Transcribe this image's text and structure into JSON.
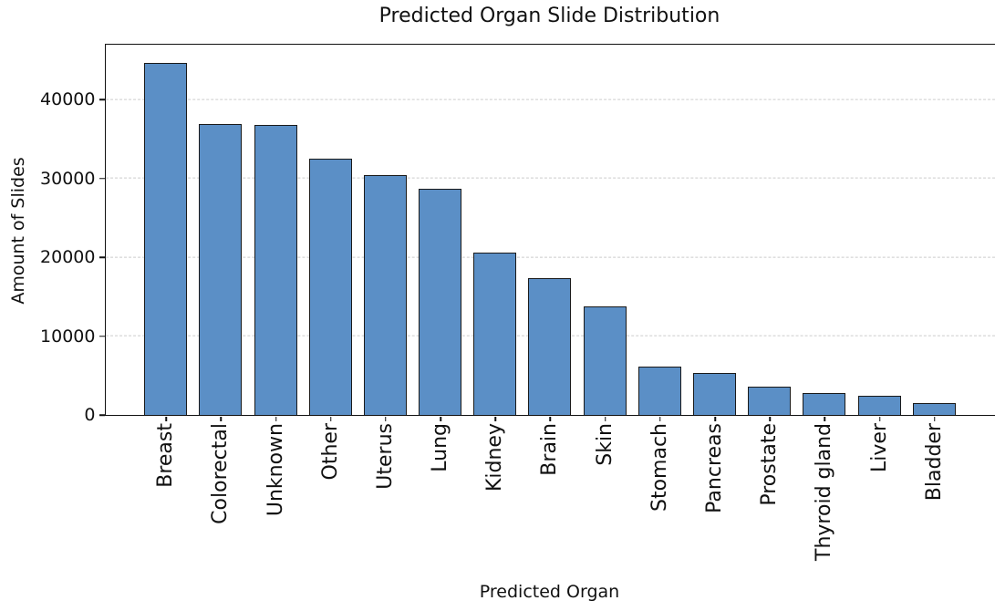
{
  "chart_data": {
    "type": "bar",
    "title": "Predicted Organ Slide Distribution",
    "xlabel": "Predicted Organ",
    "ylabel": "Amount of Slides",
    "categories": [
      "Breast",
      "Colorectal",
      "Unknown",
      "Other",
      "Uterus",
      "Lung",
      "Kidney",
      "Brain",
      "Skin",
      "Stomach",
      "Pancreas",
      "Prostate",
      "Thyroid gland",
      "Liver",
      "Bladder"
    ],
    "values": [
      44600,
      36900,
      36700,
      32500,
      30400,
      28700,
      20500,
      17300,
      13700,
      6100,
      5300,
      3500,
      2700,
      2400,
      1450
    ],
    "yticks": [
      0,
      10000,
      20000,
      30000,
      40000
    ],
    "ytick_labels": [
      "0",
      "10000",
      "20000",
      "30000",
      "40000"
    ],
    "ylim": [
      0,
      47000
    ],
    "xtick_rotation_deg": 90,
    "grid": {
      "axis": "y",
      "style": "dashed",
      "color": "#cccccc"
    },
    "legend": "none",
    "bar_color": "#5b8fc6",
    "bar_edge_color": "#1a1a1a"
  }
}
